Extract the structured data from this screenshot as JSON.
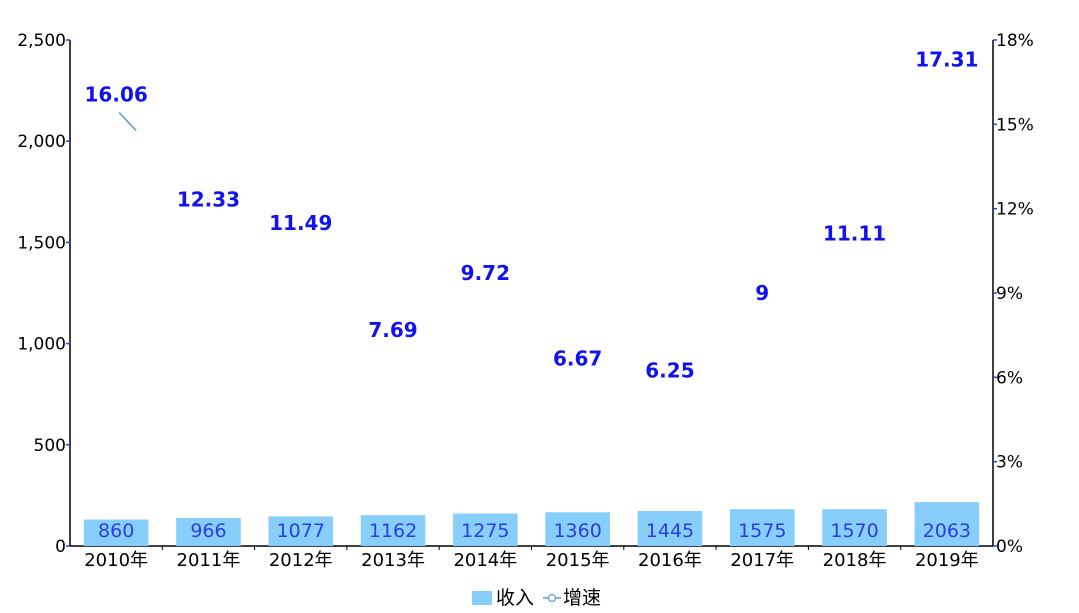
{
  "chart_data": {
    "type": "bar",
    "categories": [
      "2010年",
      "2011年",
      "2012年",
      "2013年",
      "2014年",
      "2015年",
      "2016年",
      "2017年",
      "2018年",
      "2019年"
    ],
    "series": [
      {
        "name": "收入",
        "type": "bar",
        "axis": "left",
        "values": [
          860,
          966,
          1077,
          1162,
          1275,
          1360,
          1445,
          1575,
          1570,
          2063
        ],
        "color": "#87cefa"
      },
      {
        "name": "增速",
        "type": "line",
        "axis": "right",
        "values": [
          16.06,
          12.33,
          11.49,
          7.69,
          9.72,
          6.67,
          6.25,
          9,
          11.11,
          17.31
        ],
        "color": "#5b9bd5"
      }
    ],
    "left_axis": {
      "ticks": [
        "0",
        "500",
        "1,000",
        "1,500",
        "2,000",
        "2,500"
      ],
      "ylim": [
        0,
        2500
      ]
    },
    "right_axis": {
      "ticks": [
        "0%",
        "3%",
        "6%",
        "9%",
        "12%",
        "15%",
        "18%"
      ],
      "ylim": [
        0,
        18
      ]
    },
    "label_color": "#1212ee",
    "legend_position": "bottom"
  }
}
